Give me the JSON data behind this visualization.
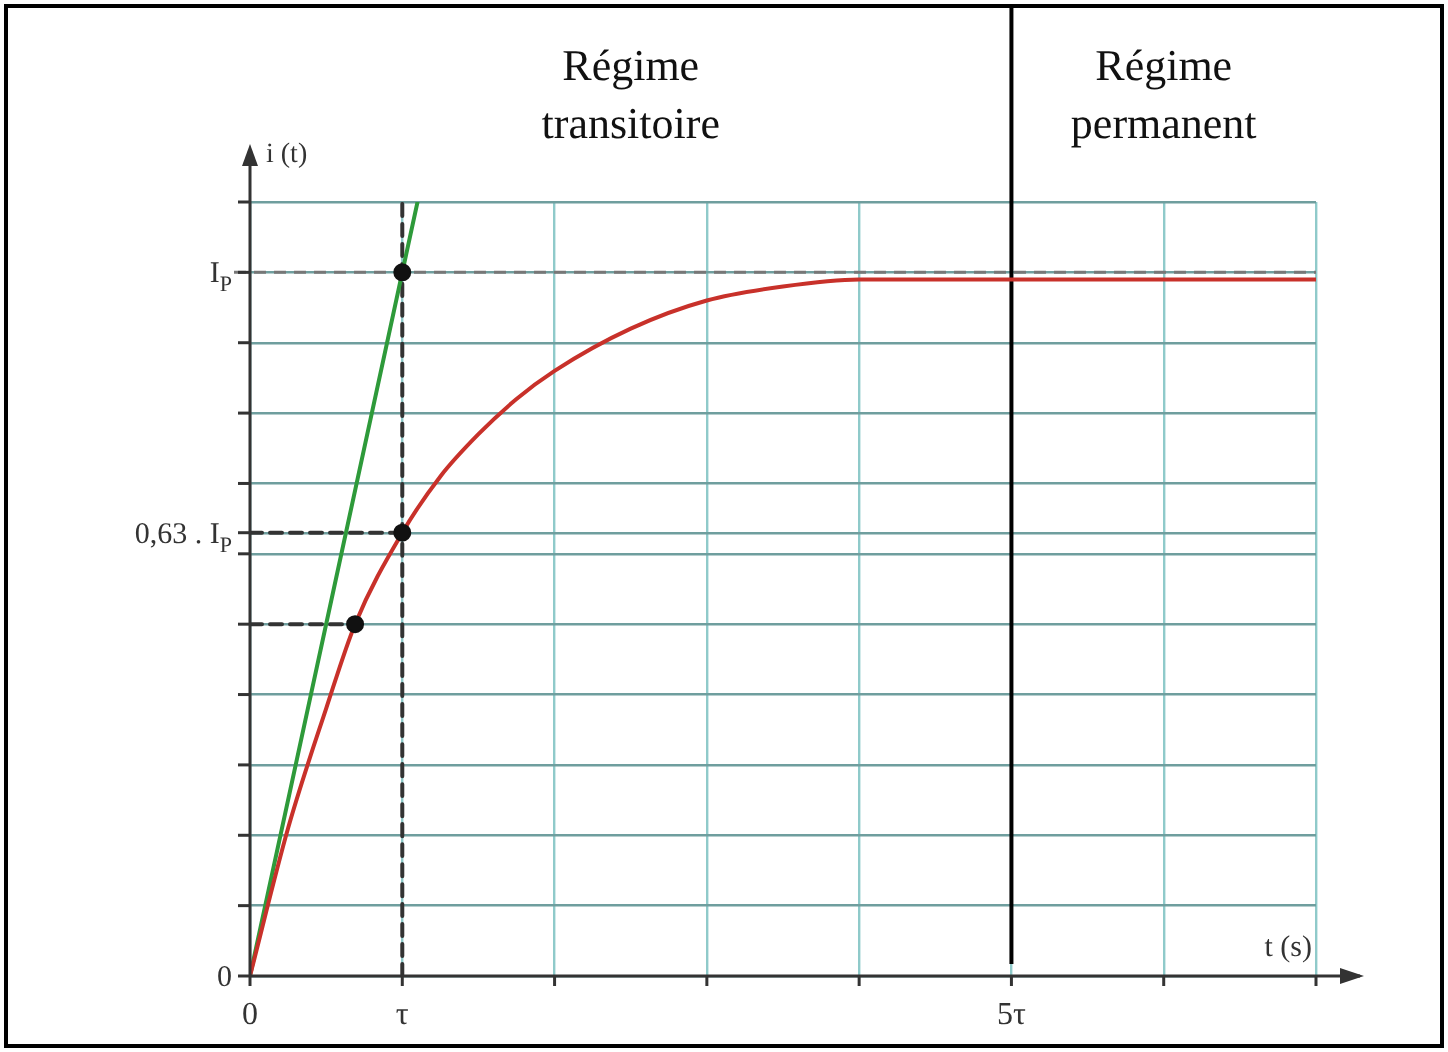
{
  "chart_data": {
    "type": "line",
    "xlabel": "t (s)",
    "ylabel": "i (t)",
    "xlim": [
      0,
      7
    ],
    "ylim": [
      0,
      1.1
    ],
    "grid": true,
    "legend": false,
    "xticks": [
      {
        "value": 0,
        "label": "0"
      },
      {
        "value": 1,
        "label": "τ"
      },
      {
        "value": 2,
        "label": null
      },
      {
        "value": 3,
        "label": null
      },
      {
        "value": 4,
        "label": null
      },
      {
        "value": 5,
        "label": "5τ"
      },
      {
        "value": 6,
        "label": null
      },
      {
        "value": 7,
        "label": null
      }
    ],
    "yticks": [
      {
        "value": 0,
        "label": "0"
      },
      {
        "value": 0.1,
        "label": null
      },
      {
        "value": 0.2,
        "label": null
      },
      {
        "value": 0.3,
        "label": null
      },
      {
        "value": 0.4,
        "label": null
      },
      {
        "value": 0.5,
        "label": null
      },
      {
        "value": 0.6,
        "label": null
      },
      {
        "value": 0.63,
        "label": "0,63 . I$_{P}$"
      },
      {
        "value": 0.7,
        "label": null
      },
      {
        "value": 0.8,
        "label": null
      },
      {
        "value": 0.9,
        "label": null
      },
      {
        "value": 1,
        "label": "I$_{P}$"
      },
      {
        "value": 1.1,
        "label": null
      }
    ],
    "series": [
      {
        "color": "#c8312a",
        "marker": "none",
        "line_style": "solid",
        "x": [
          0,
          0.25,
          0.5,
          0.69,
          1,
          1.25,
          1.5,
          1.75,
          2,
          2.5,
          3,
          3.5,
          4,
          4.5,
          5,
          6,
          7
        ],
        "values": [
          0,
          0.21,
          0.38,
          0.5,
          0.63,
          0.71,
          0.77,
          0.82,
          0.86,
          0.92,
          0.96,
          0.98,
          0.99,
          0.99,
          0.99,
          0.99,
          0.99
        ]
      },
      {
        "color": "#2e9a3a",
        "marker": "none",
        "line_style": "solid",
        "x": [
          0,
          1.1
        ],
        "values": [
          0,
          1.1
        ]
      },
      {
        "color": "#333333",
        "marker": "none",
        "line_style": "dashed",
        "x": [
          0,
          1
        ],
        "values": [
          0.63,
          0.63
        ]
      },
      {
        "color": "#333333",
        "marker": "none",
        "line_style": "dashed",
        "x": [
          0,
          0.69
        ],
        "values": [
          0.5,
          0.5
        ]
      },
      {
        "color": "#333333",
        "marker": "none",
        "line_style": "dashed",
        "x": [
          1,
          1
        ],
        "values": [
          0,
          1.1
        ]
      },
      {
        "type": "scatter",
        "color": "#111111",
        "marker": "circle",
        "x": [
          0.69,
          1,
          1
        ],
        "values": [
          0.5,
          0.63,
          1
        ]
      }
    ],
    "ref_lines": [
      {
        "axis": "x",
        "value": 5,
        "color": "#000000",
        "line_style": "solid"
      },
      {
        "axis": "y",
        "value": 1,
        "color": "#777777",
        "line_style": "dashed"
      }
    ],
    "annotations": [
      "Régime transitoire",
      "Régime permanent"
    ]
  }
}
